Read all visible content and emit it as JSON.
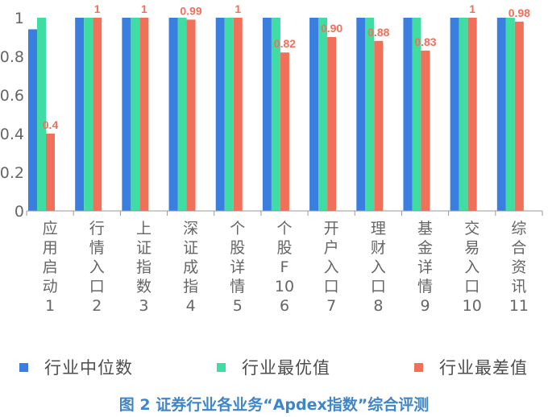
{
  "chart_data": {
    "type": "bar",
    "categories": [
      [
        "应",
        "用",
        "启",
        "动",
        "1"
      ],
      [
        "行",
        "情",
        "入",
        "口",
        "2"
      ],
      [
        "上",
        "证",
        "指",
        "数",
        "3"
      ],
      [
        "深",
        "证",
        "成",
        "指",
        "4"
      ],
      [
        "个",
        "股",
        "详",
        "情",
        "5"
      ],
      [
        "个",
        "股",
        "F",
        "10",
        "6"
      ],
      [
        "开",
        "户",
        "入",
        "口",
        "7"
      ],
      [
        "理",
        "财",
        "入",
        "口",
        "8"
      ],
      [
        "基",
        "金",
        "详",
        "情",
        "9"
      ],
      [
        "交",
        "易",
        "入",
        "口",
        "10"
      ],
      [
        "综",
        "合",
        "资",
        "讯",
        "11"
      ]
    ],
    "series": [
      {
        "name": "行业中位数",
        "color": "#3a7fe0",
        "values": [
          0.94,
          1,
          1,
          1,
          1,
          1,
          1,
          1,
          1,
          1,
          1
        ],
        "labels": null
      },
      {
        "name": "行业最优值",
        "color": "#3fdca4",
        "values": [
          1,
          1,
          1,
          1,
          1,
          1,
          1,
          1,
          1,
          1,
          1
        ],
        "labels": null
      },
      {
        "name": "行业最差值",
        "color": "#f0705a",
        "values": [
          0.4,
          1,
          1,
          0.99,
          1,
          0.82,
          0.9,
          0.88,
          0.83,
          1,
          0.98
        ],
        "labels": [
          "0.4",
          "1",
          "1",
          "0.99",
          "1",
          "0.82",
          "0.90",
          "0.88",
          "0.83",
          "1",
          "0.98"
        ]
      }
    ],
    "yticks": [
      "0",
      "0.2",
      "0.4",
      "0.6",
      "0.8",
      "1"
    ],
    "ylim": [
      0,
      1
    ],
    "grid": false,
    "legend_position": "bottom",
    "axis_color": "#999999"
  },
  "caption": "图 2 证券行业各业务“Apdex指数”综合评测"
}
